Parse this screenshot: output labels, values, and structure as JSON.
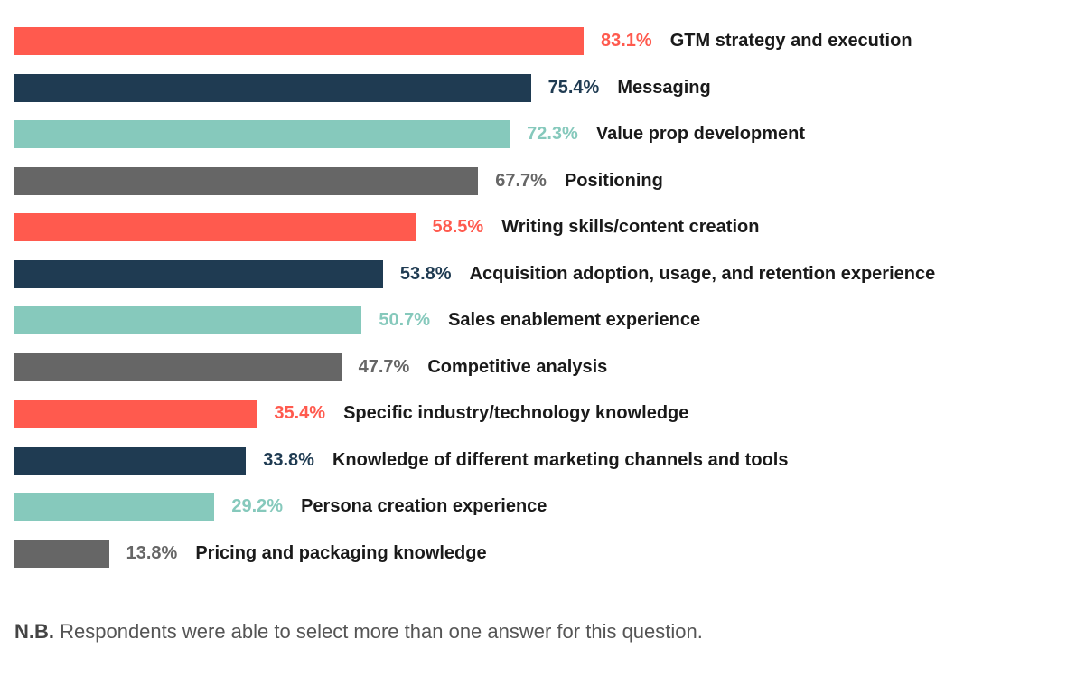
{
  "chart_data": {
    "type": "bar",
    "orientation": "horizontal",
    "categories": [
      "GTM strategy and execution",
      "Messaging",
      "Value prop development",
      "Positioning",
      "Writing skills/content creation",
      "Acquisition adoption, usage, and retention experience",
      "Sales enablement experience",
      "Competitive analysis",
      "Specific industry/technology knowledge",
      "Knowledge of different marketing channels and tools",
      "Persona creation experience",
      "Pricing and packaging knowledge"
    ],
    "values": [
      83.1,
      75.4,
      72.3,
      67.7,
      58.5,
      53.8,
      50.7,
      47.7,
      35.4,
      33.8,
      29.2,
      13.8
    ],
    "value_labels": [
      "83.1%",
      "75.4%",
      "72.3%",
      "67.7%",
      "58.5%",
      "53.8%",
      "50.7%",
      "47.7%",
      "35.4%",
      "33.8%",
      "29.2%",
      "13.8%"
    ],
    "xlim": [
      0,
      100
    ],
    "grid": false,
    "legend": "none"
  },
  "colors": {
    "bars": [
      "#ff5a4e",
      "#1f3b52",
      "#86c9bc",
      "#666666"
    ],
    "value_text": [
      "#ff5a4e",
      "#1f3b52",
      "#86c9bc",
      "#666666"
    ]
  },
  "note": {
    "prefix": "N.B.",
    "text": " Respondents were able to select more than one answer for this question."
  }
}
